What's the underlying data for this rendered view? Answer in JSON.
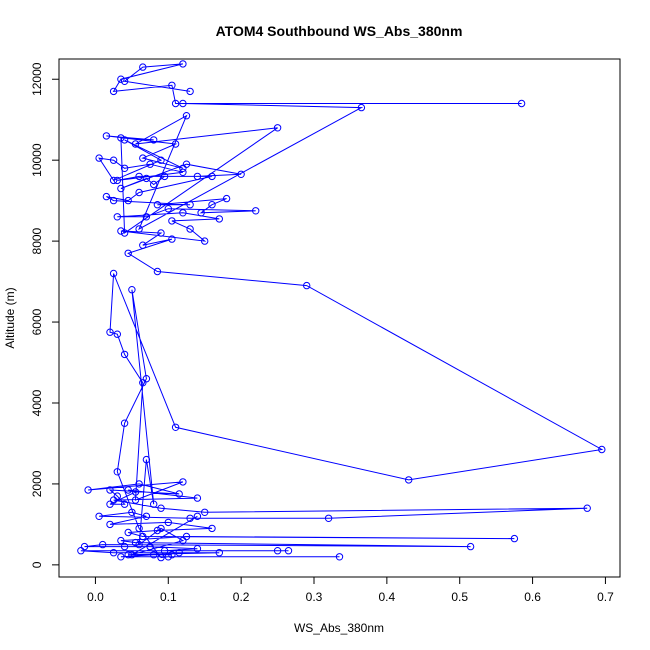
{
  "chart_data": {
    "type": "line",
    "title": "ATOM4 Southbound WS_Abs_380nm",
    "xlabel": "WS_Abs_380nm",
    "ylabel": "Altitude (m)",
    "xlim": [
      -0.05,
      0.72
    ],
    "ylim": [
      -300,
      12500
    ],
    "xticks": [
      0.0,
      0.1,
      0.2,
      0.3,
      0.4,
      0.5,
      0.6,
      0.7
    ],
    "xtick_labels": [
      "0.0",
      "0.1",
      "0.2",
      "0.3",
      "0.4",
      "0.5",
      "0.6",
      "0.7"
    ],
    "yticks": [
      0,
      2000,
      4000,
      6000,
      8000,
      10000,
      12000
    ],
    "ytick_labels": [
      "0",
      "2000",
      "4000",
      "6000",
      "8000",
      "10000",
      "12000"
    ],
    "grid": false,
    "legend": "none",
    "series_color": "#0000ff",
    "marker": "open-circle",
    "points": [
      {
        "x": 0.13,
        "y": 11700
      },
      {
        "x": 0.04,
        "y": 11950
      },
      {
        "x": 0.065,
        "y": 12300
      },
      {
        "x": 0.12,
        "y": 12380
      },
      {
        "x": 0.035,
        "y": 12000
      },
      {
        "x": 0.025,
        "y": 11700
      },
      {
        "x": 0.105,
        "y": 11850
      },
      {
        "x": 0.11,
        "y": 11400
      },
      {
        "x": 0.585,
        "y": 11400
      },
      {
        "x": 0.12,
        "y": 11400
      },
      {
        "x": 0.365,
        "y": 11300
      },
      {
        "x": 0.06,
        "y": 8300
      },
      {
        "x": 0.125,
        "y": 11100
      },
      {
        "x": 0.055,
        "y": 10400
      },
      {
        "x": 0.25,
        "y": 10800
      },
      {
        "x": 0.04,
        "y": 8200
      },
      {
        "x": 0.035,
        "y": 10550
      },
      {
        "x": 0.08,
        "y": 10500
      },
      {
        "x": 0.015,
        "y": 10600
      },
      {
        "x": 0.11,
        "y": 10400
      },
      {
        "x": 0.065,
        "y": 10050
      },
      {
        "x": 0.12,
        "y": 9800
      },
      {
        "x": 0.04,
        "y": 10500
      },
      {
        "x": 0.09,
        "y": 10000
      },
      {
        "x": 0.025,
        "y": 9500
      },
      {
        "x": 0.005,
        "y": 10050
      },
      {
        "x": 0.025,
        "y": 10000
      },
      {
        "x": 0.04,
        "y": 9800
      },
      {
        "x": 0.075,
        "y": 9900
      },
      {
        "x": 0.12,
        "y": 9700
      },
      {
        "x": 0.03,
        "y": 9500
      },
      {
        "x": 0.06,
        "y": 9600
      },
      {
        "x": 0.14,
        "y": 9600
      },
      {
        "x": 0.2,
        "y": 9650
      },
      {
        "x": 0.125,
        "y": 9900
      },
      {
        "x": 0.035,
        "y": 9300
      },
      {
        "x": 0.07,
        "y": 9550
      },
      {
        "x": 0.08,
        "y": 9400
      },
      {
        "x": 0.095,
        "y": 9600
      },
      {
        "x": 0.16,
        "y": 9600
      },
      {
        "x": 0.06,
        "y": 9200
      },
      {
        "x": 0.045,
        "y": 9000
      },
      {
        "x": 0.015,
        "y": 9100
      },
      {
        "x": 0.025,
        "y": 9000
      },
      {
        "x": 0.13,
        "y": 8900
      },
      {
        "x": 0.085,
        "y": 8900
      },
      {
        "x": 0.18,
        "y": 9050
      },
      {
        "x": 0.16,
        "y": 8900
      },
      {
        "x": 0.145,
        "y": 8700
      },
      {
        "x": 0.22,
        "y": 8750
      },
      {
        "x": 0.1,
        "y": 8800
      },
      {
        "x": 0.07,
        "y": 8600
      },
      {
        "x": 0.03,
        "y": 8600
      },
      {
        "x": 0.12,
        "y": 8700
      },
      {
        "x": 0.17,
        "y": 8550
      },
      {
        "x": 0.105,
        "y": 8500
      },
      {
        "x": 0.13,
        "y": 8300
      },
      {
        "x": 0.15,
        "y": 8000
      },
      {
        "x": 0.035,
        "y": 8250
      },
      {
        "x": 0.09,
        "y": 8200
      },
      {
        "x": 0.065,
        "y": 7900
      },
      {
        "x": 0.105,
        "y": 8050
      },
      {
        "x": 0.045,
        "y": 7700
      },
      {
        "x": 0.085,
        "y": 7250
      },
      {
        "x": 0.29,
        "y": 6900
      },
      {
        "x": 0.695,
        "y": 2850
      },
      {
        "x": 0.43,
        "y": 2100
      },
      {
        "x": 0.11,
        "y": 3400
      },
      {
        "x": 0.025,
        "y": 7200
      },
      {
        "x": 0.02,
        "y": 5750
      },
      {
        "x": 0.03,
        "y": 5700
      },
      {
        "x": 0.04,
        "y": 5200
      },
      {
        "x": 0.065,
        "y": 4500
      },
      {
        "x": 0.055,
        "y": 1600
      },
      {
        "x": 0.12,
        "y": 2050
      },
      {
        "x": -0.01,
        "y": 1850
      },
      {
        "x": 0.06,
        "y": 2000
      },
      {
        "x": 0.115,
        "y": 1750
      },
      {
        "x": 0.02,
        "y": 1850
      },
      {
        "x": 0.03,
        "y": 1700
      },
      {
        "x": 0.04,
        "y": 1500
      },
      {
        "x": 0.02,
        "y": 1500
      },
      {
        "x": 0.055,
        "y": 1800
      },
      {
        "x": 0.045,
        "y": 1850
      },
      {
        "x": 0.14,
        "y": 1650
      },
      {
        "x": 0.025,
        "y": 1600
      },
      {
        "x": 0.09,
        "y": 1400
      },
      {
        "x": 0.15,
        "y": 1300
      },
      {
        "x": 0.675,
        "y": 1400
      },
      {
        "x": 0.32,
        "y": 1150
      },
      {
        "x": 0.13,
        "y": 1150
      },
      {
        "x": 0.005,
        "y": 1200
      },
      {
        "x": 0.05,
        "y": 1300
      },
      {
        "x": 0.07,
        "y": 1200
      },
      {
        "x": 0.02,
        "y": 1000
      },
      {
        "x": 0.1,
        "y": 1050
      },
      {
        "x": 0.16,
        "y": 900
      },
      {
        "x": 0.085,
        "y": 850
      },
      {
        "x": 0.045,
        "y": 800
      },
      {
        "x": 0.065,
        "y": 700
      },
      {
        "x": 0.575,
        "y": 650
      },
      {
        "x": 0.125,
        "y": 700
      },
      {
        "x": 0.035,
        "y": 600
      },
      {
        "x": 0.055,
        "y": 550
      },
      {
        "x": 0.515,
        "y": 450
      },
      {
        "x": 0.01,
        "y": 500
      },
      {
        "x": -0.015,
        "y": 450
      },
      {
        "x": 0.04,
        "y": 450
      },
      {
        "x": 0.075,
        "y": 450
      },
      {
        "x": 0.14,
        "y": 400
      },
      {
        "x": 0.095,
        "y": 350
      },
      {
        "x": 0.25,
        "y": 350
      },
      {
        "x": 0.265,
        "y": 350
      },
      {
        "x": -0.02,
        "y": 350
      },
      {
        "x": 0.025,
        "y": 300
      },
      {
        "x": 0.115,
        "y": 300
      },
      {
        "x": 0.17,
        "y": 300
      },
      {
        "x": 0.045,
        "y": 250
      },
      {
        "x": 0.105,
        "y": 250
      },
      {
        "x": 0.08,
        "y": 250
      },
      {
        "x": 0.035,
        "y": 200
      },
      {
        "x": 0.335,
        "y": 200
      },
      {
        "x": 0.1,
        "y": 200
      },
      {
        "x": 0.09,
        "y": 180
      },
      {
        "x": 0.06,
        "y": 900
      },
      {
        "x": 0.03,
        "y": 2300
      },
      {
        "x": 0.04,
        "y": 3500
      },
      {
        "x": 0.07,
        "y": 4600
      },
      {
        "x": 0.05,
        "y": 6800
      },
      {
        "x": 0.08,
        "y": 1500
      },
      {
        "x": 0.07,
        "y": 2600
      },
      {
        "x": 0.06,
        "y": 500
      },
      {
        "x": 0.09,
        "y": 900
      },
      {
        "x": 0.12,
        "y": 600
      },
      {
        "x": 0.05,
        "y": 250
      },
      {
        "x": 0.14,
        "y": 1200
      }
    ]
  }
}
